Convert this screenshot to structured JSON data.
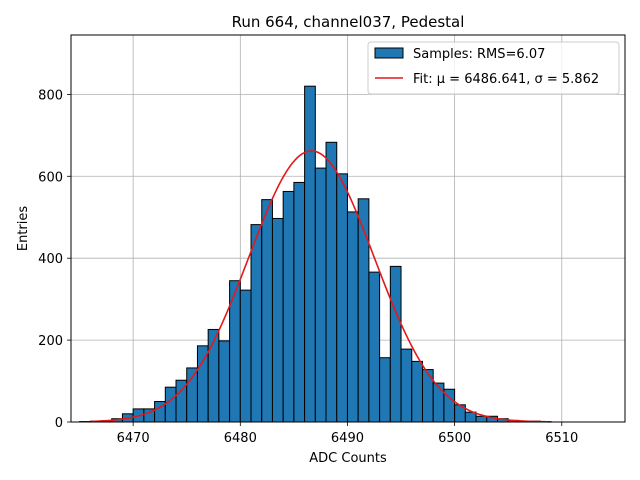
{
  "chart_data": {
    "type": "bar",
    "title": "Run 664, channel037, Pedestal",
    "xlabel": "ADC Counts",
    "ylabel": "Entries",
    "xlim": [
      6464.2,
      6515.9
    ],
    "ylim": [
      0,
      945
    ],
    "xticks": [
      6470,
      6480,
      6490,
      6500,
      6510
    ],
    "yticks": [
      0,
      200,
      400,
      600,
      800
    ],
    "grid": true,
    "legend_position": "top-right",
    "colors": {
      "bar_fill": "#1f77b4",
      "bar_edge": "#000000",
      "fit_line": "#e31a1c"
    },
    "histogram": {
      "name": "Samples: RMS=6.07",
      "bin_edges": [
        6465.0,
        6466.0,
        6467.0,
        6468.0,
        6469.0,
        6470.0,
        6471.0,
        6472.0,
        6473.0,
        6474.0,
        6475.0,
        6476.0,
        6477.0,
        6478.0,
        6479.0,
        6480.0,
        6481.0,
        6482.0,
        6483.0,
        6484.0,
        6485.0,
        6486.0,
        6487.0,
        6488.0,
        6489.0,
        6490.0,
        6491.0,
        6492.0,
        6493.0,
        6494.0,
        6495.0,
        6496.0,
        6497.0,
        6498.0,
        6499.0,
        6500.0,
        6501.0,
        6502.0,
        6503.0,
        6504.0,
        6505.0,
        6506.0,
        6507.0,
        6508.0,
        6509.0,
        6510.0,
        6511.0,
        6512.0,
        6513.0
      ],
      "counts": [
        1,
        2,
        3,
        8,
        20,
        32,
        32,
        50,
        85,
        102,
        132,
        186,
        226,
        198,
        345,
        322,
        482,
        543,
        497,
        563,
        585,
        820,
        620,
        683,
        606,
        513,
        545,
        366,
        157,
        380,
        178,
        148,
        128,
        95,
        80,
        42,
        24,
        14,
        14,
        8,
        4,
        2,
        2,
        1,
        0,
        0,
        0,
        0
      ]
    },
    "fit": {
      "name_prefix": "Fit: ",
      "mu_label": "μ = 6486.641",
      "sep": ", ",
      "sigma_label": "σ = 5.862",
      "mu": 6486.641,
      "sigma": 5.862,
      "x_range": [
        6466,
        6509
      ],
      "peak": 662
    }
  }
}
